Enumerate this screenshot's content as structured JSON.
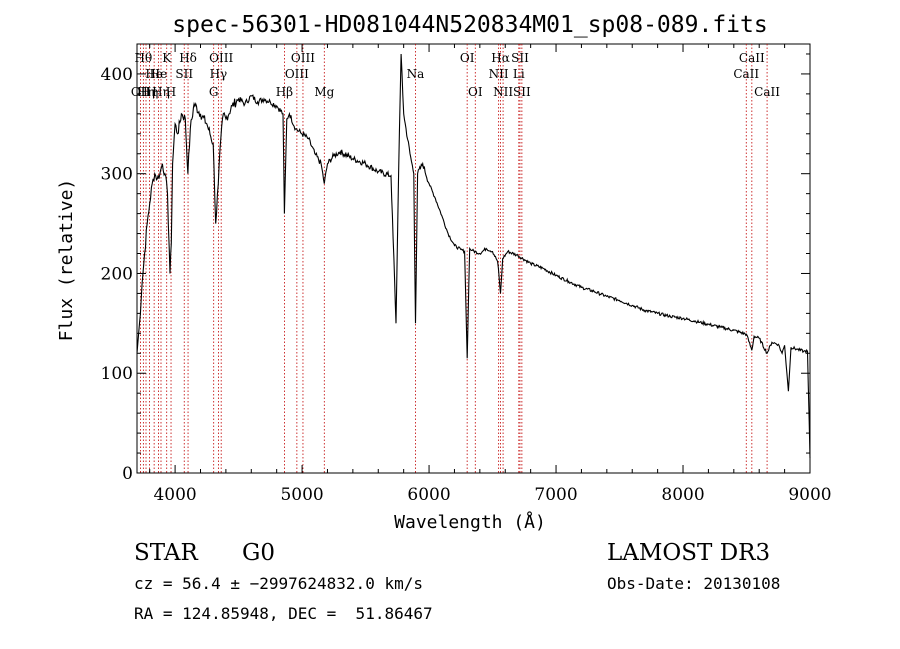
{
  "chart_data": {
    "type": "line",
    "title": "spec-56301-HD081044N520834M01_sp08-089.fits",
    "xlabel": "Wavelength (Å)",
    "ylabel": "Flux (relative)",
    "xlim": [
      3700,
      9000
    ],
    "ylim": [
      0,
      430
    ],
    "x_ticks": [
      4000,
      5000,
      6000,
      7000,
      8000,
      9000
    ],
    "x_tick_labels": [
      "4000",
      "5000",
      "6000",
      "7000",
      "8000",
      "9000"
    ],
    "y_ticks": [
      0,
      100,
      200,
      300,
      400
    ],
    "y_tick_labels": [
      "0",
      "100",
      "200",
      "300",
      "400"
    ],
    "series": [
      {
        "name": "spectrum",
        "x": [
          3700,
          3720,
          3740,
          3760,
          3780,
          3800,
          3820,
          3840,
          3860,
          3880,
          3900,
          3920,
          3940,
          3960,
          3970,
          3980,
          4000,
          4020,
          4050,
          4080,
          4101,
          4120,
          4150,
          4200,
          4250,
          4300,
          4320,
          4340,
          4360,
          4380,
          4400,
          4450,
          4500,
          4550,
          4600,
          4650,
          4700,
          4750,
          4800,
          4850,
          4861,
          4880,
          4900,
          4950,
          5000,
          5050,
          5100,
          5150,
          5175,
          5200,
          5250,
          5300,
          5400,
          5500,
          5600,
          5700,
          5740,
          5760,
          5780,
          5800,
          5850,
          5880,
          5893,
          5910,
          5950,
          6000,
          6050,
          6100,
          6150,
          6200,
          6250,
          6280,
          6300,
          6320,
          6340,
          6400,
          6450,
          6500,
          6540,
          6563,
          6580,
          6620,
          6700,
          6800,
          6900,
          7000,
          7100,
          7200,
          7300,
          7400,
          7500,
          7600,
          7700,
          7800,
          7900,
          8000,
          8100,
          8200,
          8300,
          8400,
          8500,
          8542,
          8560,
          8600,
          8662,
          8700,
          8750,
          8780,
          8800,
          8830,
          8850,
          8900,
          8950,
          8980,
          9000
        ],
        "y": [
          120,
          150,
          190,
          220,
          250,
          270,
          290,
          300,
          295,
          300,
          310,
          300,
          280,
          200,
          230,
          310,
          350,
          340,
          360,
          355,
          300,
          345,
          370,
          360,
          350,
          330,
          250,
          290,
          335,
          360,
          355,
          368,
          375,
          370,
          378,
          372,
          375,
          372,
          368,
          360,
          260,
          355,
          360,
          345,
          340,
          335,
          320,
          310,
          290,
          310,
          318,
          322,
          315,
          310,
          302,
          298,
          150,
          300,
          420,
          360,
          320,
          300,
          150,
          300,
          310,
          290,
          275,
          258,
          240,
          228,
          224,
          222,
          115,
          225,
          223,
          220,
          225,
          222,
          212,
          180,
          215,
          222,
          218,
          210,
          205,
          198,
          192,
          186,
          182,
          177,
          173,
          168,
          163,
          160,
          157,
          155,
          152,
          149,
          146,
          143,
          139,
          123,
          137,
          135,
          120,
          131,
          129,
          120,
          128,
          82,
          126,
          124,
          122,
          122,
          15
        ]
      }
    ],
    "lines": [
      {
        "wl": 3728,
        "label": "OII",
        "row": 3
      },
      {
        "wl": 3750,
        "label": "Hθ",
        "row": 1
      },
      {
        "wl": 3771,
        "label": "Hη",
        "row": 3
      },
      {
        "wl": 3798,
        "label": "Hη",
        "row": 3
      },
      {
        "wl": 3835,
        "label": "He",
        "row": 2
      },
      {
        "wl": 3869,
        "label": "He",
        "row": 2
      },
      {
        "wl": 3889,
        "label": "Hη",
        "row": 3
      },
      {
        "wl": 3934,
        "label": "K",
        "row": 1
      },
      {
        "wl": 3968,
        "label": "H",
        "row": 3
      },
      {
        "wl": 4072,
        "label": "SII",
        "row": 2
      },
      {
        "wl": 4102,
        "label": "Hδ",
        "row": 1
      },
      {
        "wl": 4304,
        "label": "G",
        "row": 3
      },
      {
        "wl": 4341,
        "label": "Hγ",
        "row": 2
      },
      {
        "wl": 4363,
        "label": "OIII",
        "row": 1
      },
      {
        "wl": 4861,
        "label": "Hβ",
        "row": 3
      },
      {
        "wl": 4959,
        "label": "OIII",
        "row": 2
      },
      {
        "wl": 5007,
        "label": "OIII",
        "row": 1
      },
      {
        "wl": 5175,
        "label": "Mg",
        "row": 3
      },
      {
        "wl": 5893,
        "label": "Na",
        "row": 2
      },
      {
        "wl": 6300,
        "label": "OI",
        "row": 1
      },
      {
        "wl": 6364,
        "label": "OI",
        "row": 3
      },
      {
        "wl": 6548,
        "label": "NII",
        "row": 2
      },
      {
        "wl": 6563,
        "label": "Hα",
        "row": 1
      },
      {
        "wl": 6583,
        "label": "NII",
        "row": 3
      },
      {
        "wl": 6707,
        "label": "Li",
        "row": 2
      },
      {
        "wl": 6716,
        "label": "SII",
        "row": 1
      },
      {
        "wl": 6731,
        "label": "SII",
        "row": 3
      },
      {
        "wl": 8498,
        "label": "CaII",
        "row": 2
      },
      {
        "wl": 8542,
        "label": "CaII",
        "row": 1
      },
      {
        "wl": 8662,
        "label": "CaII",
        "row": 3
      }
    ]
  },
  "footer": {
    "object_type": "STAR",
    "subclass": "G0",
    "survey": "LAMOST DR3",
    "cz_line": "cz = 56.4 ± −2997624832.0 km/s",
    "obs_date": "Obs-Date: 20130108",
    "coords": "RA = 124.85948, DEC =  51.86467"
  },
  "colors": {
    "line_marker": "#c00000",
    "spectrum": "#000000"
  }
}
